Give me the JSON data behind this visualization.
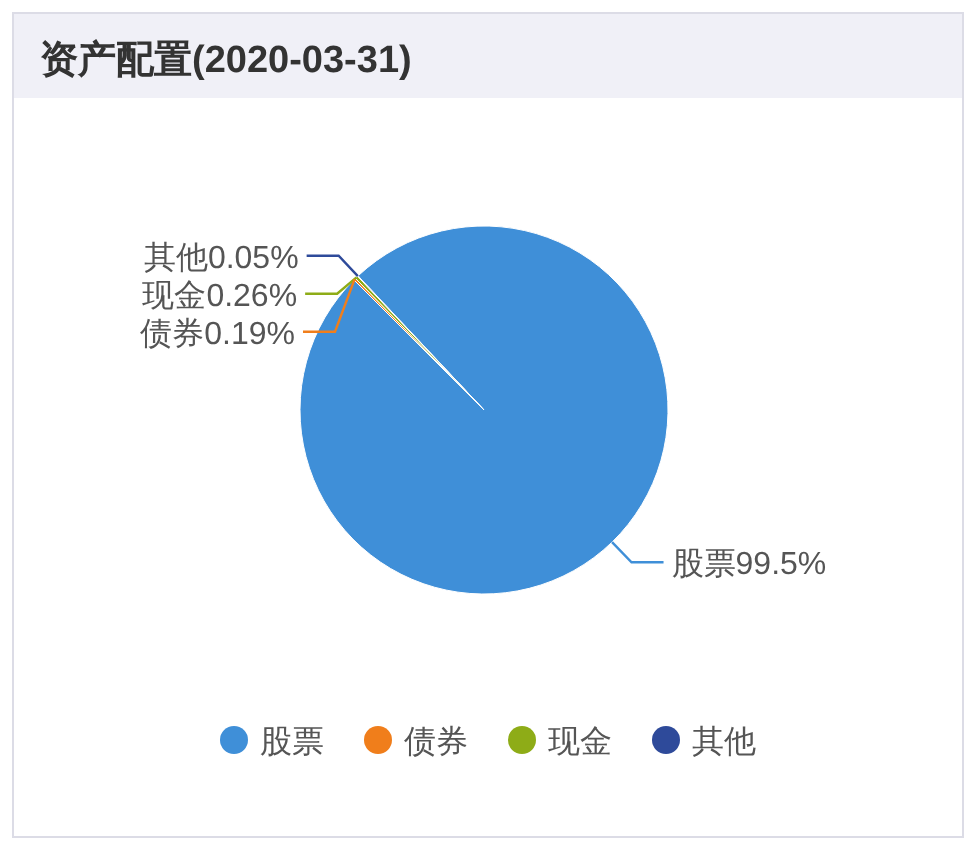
{
  "chart_data": {
    "type": "pie",
    "title": "资产配置(2020-03-31)",
    "categories": [
      "股票",
      "债券",
      "现金",
      "其他"
    ],
    "values": [
      99.5,
      0.19,
      0.26,
      0.05
    ],
    "colors": [
      "#3f8fd8",
      "#f07e1b",
      "#8eac17",
      "#2e4a9a"
    ],
    "value_labels": [
      "股票99.5%",
      "债券0.19%",
      "现金0.26%",
      "其他0.05%"
    ],
    "legend": "bottom"
  }
}
